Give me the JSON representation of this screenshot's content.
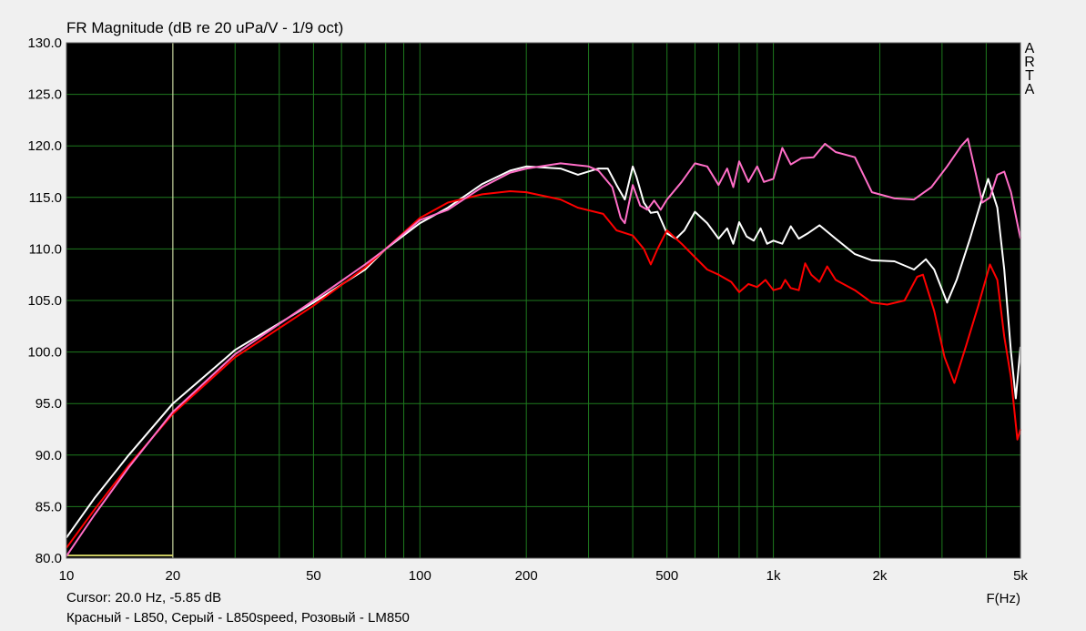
{
  "window": {
    "cursor_readout": "Cursor: 20.0 Hz, -5.85 dB",
    "legend_caption": "Красный - L850, Серый - L850speed, Розовый - LM850",
    "watermark": "ARTA"
  },
  "chart_data": {
    "type": "line",
    "title": "FR Magnitude (dB re 20 uPa/V - 1/9 oct)",
    "xlabel": "F(Hz)",
    "ylabel": "",
    "xscale": "log",
    "xlim": [
      10,
      5000
    ],
    "ylim": [
      80,
      130
    ],
    "x_ticks": [
      {
        "value": 10,
        "label": "10"
      },
      {
        "value": 20,
        "label": "20"
      },
      {
        "value": 50,
        "label": "50"
      },
      {
        "value": 100,
        "label": "100"
      },
      {
        "value": 200,
        "label": "200"
      },
      {
        "value": 500,
        "label": "500"
      },
      {
        "value": 1000,
        "label": "1k"
      },
      {
        "value": 2000,
        "label": "2k"
      },
      {
        "value": 5000,
        "label": "5k"
      }
    ],
    "y_ticks": [
      {
        "value": 130,
        "label": "130.0"
      },
      {
        "value": 125,
        "label": "125.0"
      },
      {
        "value": 120,
        "label": "120.0"
      },
      {
        "value": 115,
        "label": "115.0"
      },
      {
        "value": 110,
        "label": "110.0"
      },
      {
        "value": 105,
        "label": "105.0"
      },
      {
        "value": 100,
        "label": "100.0"
      },
      {
        "value": 95,
        "label": "95.0"
      },
      {
        "value": 90,
        "label": "90.0"
      },
      {
        "value": 85,
        "label": "85.0"
      },
      {
        "value": 80,
        "label": "80.0"
      }
    ],
    "grid": true,
    "background": "#000000",
    "grid_color": "#1e7a1e",
    "cursor": {
      "x": 20,
      "color": "#e8e8b8"
    },
    "series": [
      {
        "color": "#ffffff",
        "points": [
          [
            10,
            82.0
          ],
          [
            12,
            85.8
          ],
          [
            15,
            90.0
          ],
          [
            20,
            95.0
          ],
          [
            30,
            100.2
          ],
          [
            50,
            104.8
          ],
          [
            70,
            108.0
          ],
          [
            80,
            110.0
          ],
          [
            100,
            112.5
          ],
          [
            120,
            114.0
          ],
          [
            150,
            116.3
          ],
          [
            180,
            117.6
          ],
          [
            200,
            118.0
          ],
          [
            250,
            117.8
          ],
          [
            280,
            117.2
          ],
          [
            320,
            117.8
          ],
          [
            340,
            117.8
          ],
          [
            360,
            116.2
          ],
          [
            380,
            114.8
          ],
          [
            400,
            118.0
          ],
          [
            410,
            117.0
          ],
          [
            430,
            114.5
          ],
          [
            450,
            113.5
          ],
          [
            470,
            113.6
          ],
          [
            500,
            111.5
          ],
          [
            530,
            111.0
          ],
          [
            560,
            111.8
          ],
          [
            600,
            113.6
          ],
          [
            650,
            112.5
          ],
          [
            700,
            111.0
          ],
          [
            740,
            112.0
          ],
          [
            770,
            110.5
          ],
          [
            800,
            112.6
          ],
          [
            840,
            111.2
          ],
          [
            880,
            110.8
          ],
          [
            920,
            112.0
          ],
          [
            960,
            110.5
          ],
          [
            1000,
            110.8
          ],
          [
            1060,
            110.5
          ],
          [
            1120,
            112.2
          ],
          [
            1180,
            111.0
          ],
          [
            1250,
            111.5
          ],
          [
            1350,
            112.3
          ],
          [
            1500,
            111.0
          ],
          [
            1700,
            109.5
          ],
          [
            1900,
            108.9
          ],
          [
            2200,
            108.8
          ],
          [
            2500,
            108.0
          ],
          [
            2700,
            109.0
          ],
          [
            2850,
            108.0
          ],
          [
            3100,
            104.8
          ],
          [
            3300,
            107.0
          ],
          [
            3600,
            111.0
          ],
          [
            3900,
            115.0
          ],
          [
            4050,
            116.8
          ],
          [
            4300,
            114.0
          ],
          [
            4500,
            108.0
          ],
          [
            4700,
            100.0
          ],
          [
            4850,
            95.5
          ],
          [
            5000,
            100.5
          ]
        ]
      },
      {
        "color": "#ff0000",
        "points": [
          [
            10,
            81.0
          ],
          [
            12,
            84.7
          ],
          [
            15,
            89.0
          ],
          [
            20,
            94.0
          ],
          [
            30,
            99.5
          ],
          [
            50,
            104.5
          ],
          [
            70,
            108.2
          ],
          [
            80,
            110.0
          ],
          [
            100,
            113.0
          ],
          [
            120,
            114.5
          ],
          [
            150,
            115.3
          ],
          [
            180,
            115.6
          ],
          [
            200,
            115.5
          ],
          [
            250,
            114.8
          ],
          [
            280,
            114.0
          ],
          [
            330,
            113.4
          ],
          [
            360,
            111.8
          ],
          [
            400,
            111.3
          ],
          [
            430,
            110.0
          ],
          [
            450,
            108.5
          ],
          [
            470,
            110.0
          ],
          [
            500,
            111.8
          ],
          [
            550,
            110.5
          ],
          [
            600,
            109.2
          ],
          [
            650,
            108.0
          ],
          [
            700,
            107.5
          ],
          [
            760,
            106.8
          ],
          [
            800,
            105.8
          ],
          [
            850,
            106.6
          ],
          [
            900,
            106.3
          ],
          [
            950,
            107.0
          ],
          [
            1000,
            106.0
          ],
          [
            1050,
            106.2
          ],
          [
            1080,
            107.0
          ],
          [
            1120,
            106.2
          ],
          [
            1180,
            106.0
          ],
          [
            1230,
            108.6
          ],
          [
            1280,
            107.5
          ],
          [
            1350,
            106.8
          ],
          [
            1420,
            108.3
          ],
          [
            1500,
            107.0
          ],
          [
            1700,
            106.0
          ],
          [
            1900,
            104.8
          ],
          [
            2100,
            104.6
          ],
          [
            2350,
            105.0
          ],
          [
            2550,
            107.3
          ],
          [
            2650,
            107.5
          ],
          [
            2850,
            104.0
          ],
          [
            3050,
            99.5
          ],
          [
            3250,
            97.0
          ],
          [
            3500,
            100.5
          ],
          [
            3800,
            104.5
          ],
          [
            4100,
            108.5
          ],
          [
            4300,
            107.0
          ],
          [
            4500,
            101.5
          ],
          [
            4700,
            97.5
          ],
          [
            4900,
            91.5
          ],
          [
            5000,
            92.5
          ]
        ]
      },
      {
        "color": "#ff6ec7",
        "points": [
          [
            10,
            80.2
          ],
          [
            12,
            84.2
          ],
          [
            15,
            88.8
          ],
          [
            20,
            94.2
          ],
          [
            30,
            99.8
          ],
          [
            50,
            105.0
          ],
          [
            70,
            108.5
          ],
          [
            80,
            110.0
          ],
          [
            100,
            112.8
          ],
          [
            120,
            113.8
          ],
          [
            150,
            116.0
          ],
          [
            180,
            117.4
          ],
          [
            200,
            117.8
          ],
          [
            250,
            118.3
          ],
          [
            300,
            118.0
          ],
          [
            320,
            117.6
          ],
          [
            350,
            116.0
          ],
          [
            370,
            113.0
          ],
          [
            380,
            112.5
          ],
          [
            400,
            116.2
          ],
          [
            420,
            114.2
          ],
          [
            440,
            113.8
          ],
          [
            460,
            114.7
          ],
          [
            480,
            113.8
          ],
          [
            500,
            114.8
          ],
          [
            550,
            116.5
          ],
          [
            600,
            118.3
          ],
          [
            650,
            118.0
          ],
          [
            700,
            116.2
          ],
          [
            740,
            117.8
          ],
          [
            770,
            116.0
          ],
          [
            800,
            118.5
          ],
          [
            850,
            116.5
          ],
          [
            900,
            118.0
          ],
          [
            940,
            116.5
          ],
          [
            1000,
            116.8
          ],
          [
            1060,
            119.8
          ],
          [
            1120,
            118.2
          ],
          [
            1200,
            118.8
          ],
          [
            1300,
            118.9
          ],
          [
            1400,
            120.2
          ],
          [
            1500,
            119.4
          ],
          [
            1700,
            118.9
          ],
          [
            1900,
            115.5
          ],
          [
            2200,
            114.9
          ],
          [
            2500,
            114.8
          ],
          [
            2800,
            116.0
          ],
          [
            3100,
            118.0
          ],
          [
            3400,
            120.0
          ],
          [
            3550,
            120.7
          ],
          [
            3700,
            118.0
          ],
          [
            3900,
            114.5
          ],
          [
            4100,
            115.0
          ],
          [
            4300,
            117.2
          ],
          [
            4500,
            117.5
          ],
          [
            4700,
            115.5
          ],
          [
            5000,
            111.0
          ]
        ]
      }
    ]
  }
}
